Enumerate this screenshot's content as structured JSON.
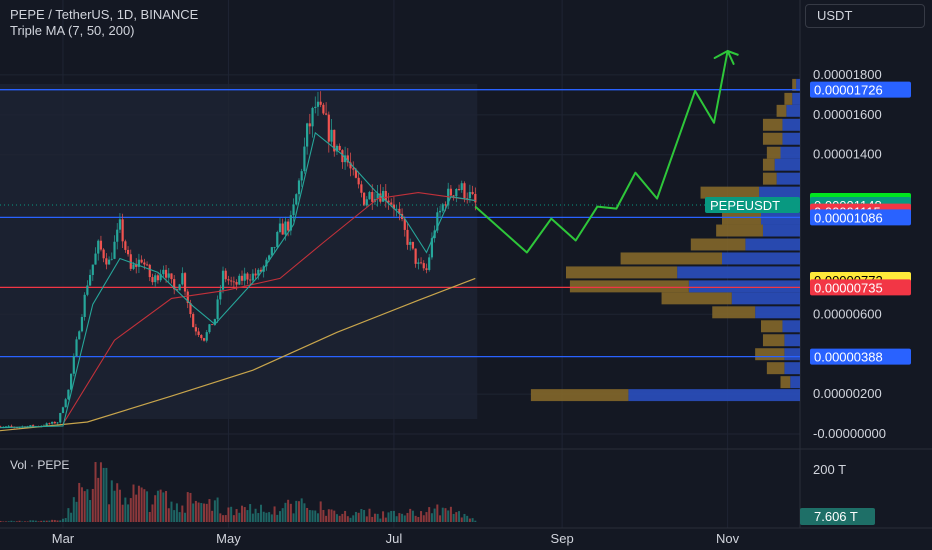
{
  "header": {
    "symbol_line": "PEPE / TetherUS, 1D, BINANCE",
    "indicator_line": "Triple MA (7, 50, 200)",
    "volume_label": "Vol · PEPE",
    "currency": "USDT"
  },
  "colors": {
    "background": "#141823",
    "up": "#26a69a",
    "down": "#ef5350",
    "ma7": "#26a69a",
    "ma50": "#c2313a",
    "ma200": "#c8a54c",
    "level_lines": "#2962ff",
    "support_line": "#f23645",
    "projection": "#2ec73a"
  },
  "chart_data": {
    "type": "candlestick",
    "symbol": "PEPEUSDT",
    "ylim": [
      -1e-07,
      1.96e-05
    ],
    "y_ticks": [
      "0.00001800",
      "0.00001600",
      "0.00001400",
      "0.00000600",
      "0.00000200",
      "-0.00000000"
    ],
    "y_tick_values": [
      1.8e-05,
      1.6e-05,
      1.4e-05,
      6e-06,
      2e-06,
      0.0
    ],
    "x_ticks": [
      "Mar",
      "May",
      "Jul",
      "Sep",
      "Nov"
    ],
    "x_tick_dates": [
      "2023-03-01",
      "2023-05-01",
      "2023-07-01",
      "2023-09-01",
      "2023-11-01"
    ],
    "date_range": [
      "2023-02-01",
      "2023-12-01"
    ],
    "last_candle_date": "2023-07-31",
    "price_labels": [
      {
        "text": "0.00001726",
        "value": 1.726e-05,
        "color": "#2962ff",
        "text_color": "#ffffff"
      },
      {
        "text": "0.00001168",
        "value": 1.168e-05,
        "color": "#00e61f",
        "text_color": "#000000"
      },
      {
        "text": "0.00001148",
        "value": 1.148e-05,
        "color": "#089981",
        "text_color": "#ffffff",
        "tag": "PEPEUSDT"
      },
      {
        "text": "0.00001115",
        "value": 1.115e-05,
        "color": "#f23645",
        "text_color": "#ffffff"
      },
      {
        "text": "0.00001086",
        "value": 1.086e-05,
        "color": "#2962ff",
        "text_color": "#ffffff"
      },
      {
        "text": "0.00000772",
        "value": 7.72e-06,
        "color": "#ffeb3b",
        "text_color": "#000000"
      },
      {
        "text": "0.00000735",
        "value": 7.35e-06,
        "color": "#f23645",
        "text_color": "#ffffff"
      },
      {
        "text": "0.00000388",
        "value": 3.88e-06,
        "color": "#2962ff",
        "text_color": "#ffffff"
      }
    ],
    "horizontal_lines": [
      {
        "value": 1.726e-05,
        "color": "#2962ff"
      },
      {
        "value": 1.086e-05,
        "color": "#2962ff"
      },
      {
        "value": 7.35e-06,
        "color": "#f23645"
      },
      {
        "value": 3.88e-06,
        "color": "#2962ff"
      }
    ],
    "candles_anchor_path": [
      [
        "2023-02-01",
        3e-07
      ],
      [
        "2023-02-10",
        3.5e-07
      ],
      [
        "2023-02-20",
        4e-07
      ],
      [
        "2023-02-27",
        6e-07
      ],
      [
        "2023-03-03",
        2.2e-06
      ],
      [
        "2023-03-06",
        4.6e-06
      ],
      [
        "2023-03-10",
        7.6e-06
      ],
      [
        "2023-03-14",
        9.4e-06
      ],
      [
        "2023-03-18",
        8.6e-06
      ],
      [
        "2023-03-22",
        1.04e-05
      ],
      [
        "2023-03-26",
        8.2e-06
      ],
      [
        "2023-03-30",
        8.8e-06
      ],
      [
        "2023-04-03",
        7.6e-06
      ],
      [
        "2023-04-07",
        8.4e-06
      ],
      [
        "2023-04-11",
        7.2e-06
      ],
      [
        "2023-04-14",
        8e-06
      ],
      [
        "2023-04-18",
        5.4e-06
      ],
      [
        "2023-04-22",
        4.8e-06
      ],
      [
        "2023-04-26",
        5.8e-06
      ],
      [
        "2023-04-29",
        8e-06
      ],
      [
        "2023-05-03",
        7.4e-06
      ],
      [
        "2023-05-07",
        7.9e-06
      ],
      [
        "2023-05-12",
        8e-06
      ],
      [
        "2023-05-16",
        8.7e-06
      ],
      [
        "2023-05-20",
        1.02e-05
      ],
      [
        "2023-05-24",
        1.06e-05
      ],
      [
        "2023-05-27",
        1.26e-05
      ],
      [
        "2023-05-30",
        1.51e-05
      ],
      [
        "2023-06-02",
        1.64e-05
      ],
      [
        "2023-06-05",
        1.58e-05
      ],
      [
        "2023-06-09",
        1.45e-05
      ],
      [
        "2023-06-13",
        1.4e-05
      ],
      [
        "2023-06-16",
        1.28e-05
      ],
      [
        "2023-06-20",
        1.18e-05
      ],
      [
        "2023-06-24",
        1.22e-05
      ],
      [
        "2023-06-28",
        1.2e-05
      ],
      [
        "2023-07-01",
        1.15e-05
      ],
      [
        "2023-07-04",
        1.04e-05
      ],
      [
        "2023-07-07",
        9.4e-06
      ],
      [
        "2023-07-10",
        8.4e-06
      ],
      [
        "2023-07-13",
        8.2e-06
      ],
      [
        "2023-07-16",
        1.04e-05
      ],
      [
        "2023-07-20",
        1.18e-05
      ],
      [
        "2023-07-24",
        1.24e-05
      ],
      [
        "2023-07-28",
        1.21e-05
      ],
      [
        "2023-07-31",
        1.15e-05
      ]
    ],
    "moving_averages": {
      "ma7": [
        [
          "2023-02-01",
          3e-07
        ],
        [
          "2023-03-01",
          4e-07
        ],
        [
          "2023-03-12",
          6.5e-06
        ],
        [
          "2023-03-22",
          8.8e-06
        ],
        [
          "2023-04-05",
          8.1e-06
        ],
        [
          "2023-04-18",
          6.4e-06
        ],
        [
          "2023-04-26",
          5.5e-06
        ],
        [
          "2023-05-12",
          7.9e-06
        ],
        [
          "2023-05-25",
          1.05e-05
        ],
        [
          "2023-06-02",
          1.51e-05
        ],
        [
          "2023-06-12",
          1.4e-05
        ],
        [
          "2023-06-24",
          1.22e-05
        ],
        [
          "2023-07-05",
          1.08e-05
        ],
        [
          "2023-07-13",
          9.1e-06
        ],
        [
          "2023-07-22",
          1.19e-05
        ],
        [
          "2023-07-31",
          1.17e-05
        ]
      ],
      "ma50": [
        [
          "2023-03-01",
          5e-07
        ],
        [
          "2023-03-20",
          4.7e-06
        ],
        [
          "2023-04-10",
          6.8e-06
        ],
        [
          "2023-04-30",
          7.2e-06
        ],
        [
          "2023-05-20",
          7.8e-06
        ],
        [
          "2023-06-05",
          9.6e-06
        ],
        [
          "2023-06-25",
          1.18e-05
        ],
        [
          "2023-07-10",
          1.21e-05
        ],
        [
          "2023-07-31",
          1.17e-05
        ]
      ],
      "ma200": [
        [
          "2023-02-01",
          1e-07
        ],
        [
          "2023-03-10",
          6e-07
        ],
        [
          "2023-04-10",
          1.9e-06
        ],
        [
          "2023-05-10",
          3.2e-06
        ],
        [
          "2023-06-10",
          5.1e-06
        ],
        [
          "2023-07-10",
          6.7e-06
        ],
        [
          "2023-07-31",
          7.8e-06
        ]
      ]
    },
    "projection_path": [
      [
        "2023-07-31",
        1.14e-05
      ],
      [
        "2023-08-19",
        9.1e-06
      ],
      [
        "2023-08-28",
        1.08e-05
      ],
      [
        "2023-09-06",
        9.7e-06
      ],
      [
        "2023-09-14",
        1.14e-05
      ],
      [
        "2023-09-21",
        1.13e-05
      ],
      [
        "2023-09-28",
        1.31e-05
      ],
      [
        "2023-10-06",
        1.18e-05
      ],
      [
        "2023-10-20",
        1.72e-05
      ],
      [
        "2023-10-27",
        1.56e-05
      ],
      [
        "2023-11-01",
        1.92e-05
      ],
      [
        "2023-11-05",
        1.9e-05
      ]
    ],
    "volume_profile": [
      {
        "price": 1.95e-06,
        "up": 0.5,
        "down": 0.88
      },
      {
        "price": 2.6e-06,
        "up": 0.05,
        "down": 0.05
      },
      {
        "price": 3.3e-06,
        "up": 0.09,
        "down": 0.08
      },
      {
        "price": 4e-06,
        "up": 0.15,
        "down": 0.08
      },
      {
        "price": 4.7e-06,
        "up": 0.11,
        "down": 0.08
      },
      {
        "price": 5.4e-06,
        "up": 0.11,
        "down": 0.09
      },
      {
        "price": 6.1e-06,
        "up": 0.22,
        "down": 0.23
      },
      {
        "price": 6.8e-06,
        "up": 0.36,
        "down": 0.35
      },
      {
        "price": 7.4e-06,
        "up": 0.61,
        "down": 0.57
      },
      {
        "price": 8.1e-06,
        "up": 0.57,
        "down": 0.63
      },
      {
        "price": 8.8e-06,
        "up": 0.52,
        "down": 0.4
      },
      {
        "price": 9.5e-06,
        "up": 0.28,
        "down": 0.28
      },
      {
        "price": 1.02e-05,
        "up": 0.24,
        "down": 0.19
      },
      {
        "price": 1.08e-05,
        "up": 0.2,
        "down": 0.2
      },
      {
        "price": 1.15e-05,
        "up": 0.16,
        "down": 0.28
      },
      {
        "price": 1.21e-05,
        "up": 0.3,
        "down": 0.21
      },
      {
        "price": 1.28e-05,
        "up": 0.07,
        "down": 0.12
      },
      {
        "price": 1.35e-05,
        "up": 0.06,
        "down": 0.13
      },
      {
        "price": 1.41e-05,
        "up": 0.07,
        "down": 0.1
      },
      {
        "price": 1.48e-05,
        "up": 0.1,
        "down": 0.09
      },
      {
        "price": 1.55e-05,
        "up": 0.1,
        "down": 0.09
      },
      {
        "price": 1.62e-05,
        "up": 0.05,
        "down": 0.07
      },
      {
        "price": 1.68e-05,
        "up": 0.04,
        "down": 0.04
      },
      {
        "price": 1.75e-05,
        "up": 0.02,
        "down": 0.02
      }
    ],
    "volume": {
      "ylim": [
        0,
        250
      ],
      "unit": "T",
      "tick_label": "200 T",
      "tick_value": 200,
      "last_label": "7.606 T",
      "last_value": 7.606,
      "anchor_path": [
        [
          "2023-02-01",
          2
        ],
        [
          "2023-02-28",
          6
        ],
        [
          "2023-03-08",
          130
        ],
        [
          "2023-03-14",
          165
        ],
        [
          "2023-03-22",
          110
        ],
        [
          "2023-04-05",
          90
        ],
        [
          "2023-04-20",
          75
        ],
        [
          "2023-05-05",
          50
        ],
        [
          "2023-05-20",
          60
        ],
        [
          "2023-05-30",
          70
        ],
        [
          "2023-06-10",
          40
        ],
        [
          "2023-07-01",
          30
        ],
        [
          "2023-07-12",
          45
        ],
        [
          "2023-07-20",
          50
        ],
        [
          "2023-07-31",
          10
        ]
      ]
    }
  }
}
